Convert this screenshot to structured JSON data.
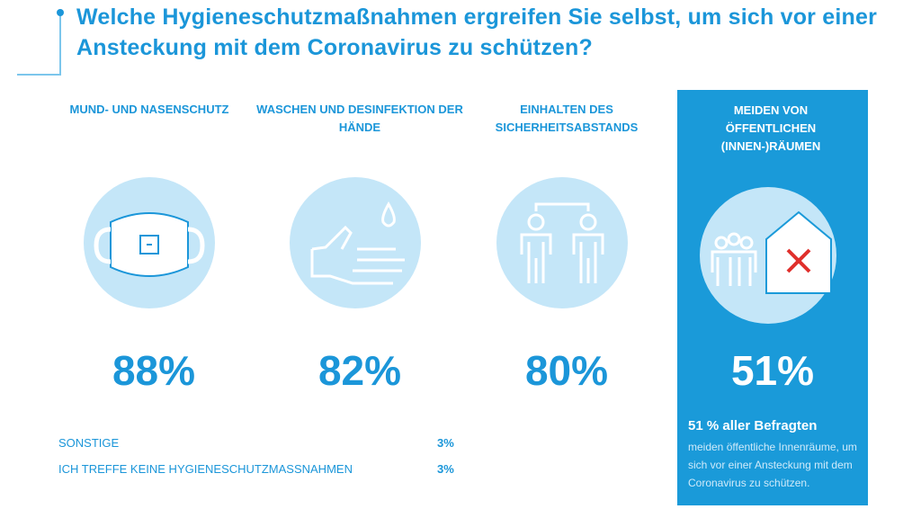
{
  "title": "Welche Hygieneschutzmaßnahmen ergreifen Sie selbst, um sich vor einer Ansteckung mit dem Coronavirus zu schützen?",
  "chart_data": {
    "type": "infographic",
    "title": "Welche Hygieneschutzmaßnahmen ergreifen Sie selbst, um sich vor einer Ansteckung mit dem Coronavirus zu schützen?",
    "categories": [
      "MUND- UND NASENSCHUTZ",
      "WASCHEN UND DESINFEKTION DER HÄNDE",
      "EINHALTEN DES SICHERHEITSABSTANDS",
      "MEIDEN VON ÖFFENTLICHEN (INNEN-)RÄUMEN"
    ],
    "values": [
      88,
      82,
      80,
      51
    ],
    "labels": [
      "88%",
      "82%",
      "80%",
      "51%"
    ],
    "icons": [
      "face-mask-icon",
      "hand-drop-icon",
      "distance-people-icon",
      "people-house-x-icon"
    ],
    "highlight": {
      "headline": "51 % aller Befragten",
      "text": "meiden öffentliche Innenräume, um sich vor einer Ansteckung mit dem Coronavirus zu schützen."
    },
    "other": [
      {
        "label": "SONSTIGE",
        "value": "3%"
      },
      {
        "label": "ICH TREFFE KEINE HYGIENESCHUTZMASSNAHMEN",
        "value": "3%"
      }
    ]
  },
  "colors": {
    "accent": "#1b96d9",
    "circle": "#c4e6f8",
    "panel": "#1a9ad9"
  }
}
